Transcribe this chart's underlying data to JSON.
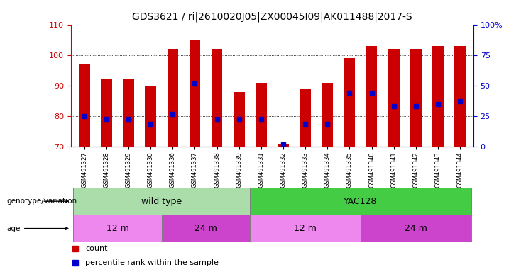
{
  "title": "GDS3621 / ri|2610020J05|ZX00045I09|AK011488|2017-S",
  "samples": [
    "GSM491327",
    "GSM491328",
    "GSM491329",
    "GSM491330",
    "GSM491336",
    "GSM491337",
    "GSM491338",
    "GSM491339",
    "GSM491331",
    "GSM491332",
    "GSM491333",
    "GSM491334",
    "GSM491335",
    "GSM491340",
    "GSM491341",
    "GSM491342",
    "GSM491343",
    "GSM491344"
  ],
  "counts": [
    97,
    92,
    92,
    90,
    102,
    105,
    102,
    88,
    91,
    71,
    89,
    91,
    99,
    103,
    102,
    102,
    103,
    103
  ],
  "percentiles": [
    25,
    23,
    23,
    19,
    27,
    52,
    23,
    23,
    23,
    2,
    19,
    19,
    44,
    44,
    33,
    33,
    35,
    37
  ],
  "ylim_left": [
    70,
    110
  ],
  "ylim_right": [
    0,
    100
  ],
  "yticks_left": [
    70,
    80,
    90,
    100,
    110
  ],
  "yticks_right": [
    0,
    25,
    50,
    75,
    100
  ],
  "bar_color": "#cc0000",
  "dot_color": "#0000cc",
  "bar_width": 0.5,
  "genotype_groups": [
    {
      "label": "wild type",
      "start": 0,
      "end": 8,
      "color": "#aaddaa"
    },
    {
      "label": "YAC128",
      "start": 8,
      "end": 18,
      "color": "#44cc44"
    }
  ],
  "age_groups": [
    {
      "label": "12 m",
      "start": 0,
      "end": 4,
      "color": "#ee88ee"
    },
    {
      "label": "24 m",
      "start": 4,
      "end": 8,
      "color": "#cc44cc"
    },
    {
      "label": "12 m",
      "start": 8,
      "end": 13,
      "color": "#ee88ee"
    },
    {
      "label": "24 m",
      "start": 13,
      "end": 18,
      "color": "#cc44cc"
    }
  ],
  "legend_items": [
    {
      "label": "count",
      "color": "#cc0000"
    },
    {
      "label": "percentile rank within the sample",
      "color": "#0000cc"
    }
  ],
  "title_fontsize": 10,
  "tick_fontsize": 8,
  "label_fontsize": 9,
  "sample_fontsize": 6
}
